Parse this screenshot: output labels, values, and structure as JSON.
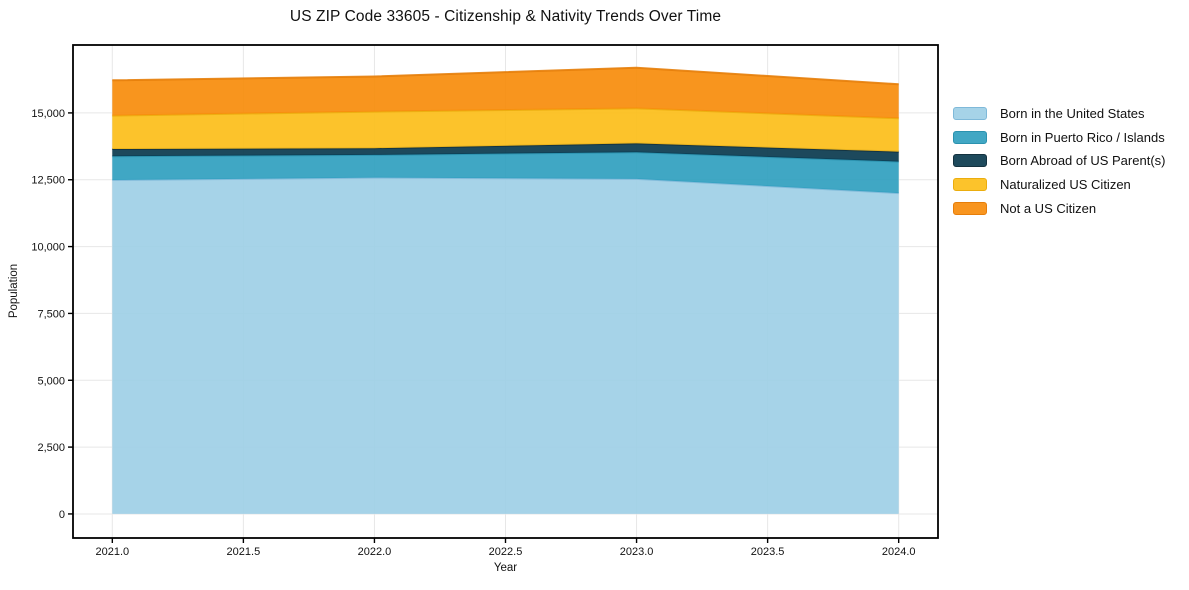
{
  "title": "US ZIP Code 33605 - Citizenship & Nativity Trends Over Time",
  "chart_data": {
    "type": "area",
    "stacked": true,
    "title": "US ZIP Code 33605 - Citizenship & Nativity Trends Over Time",
    "xlabel": "Year",
    "ylabel": "Population",
    "x": [
      2021,
      2022,
      2023,
      2024
    ],
    "series": [
      {
        "name": "Born in the United States",
        "values": [
          12490,
          12580,
          12530,
          12000
        ],
        "color": "#9ECFE6",
        "legend_color": "#A6D3E8",
        "edge_color": "#7FB9D9"
      },
      {
        "name": "Born in Puerto Rico / Islands",
        "values": [
          890,
          850,
          1000,
          1180
        ],
        "color": "#309FBF",
        "legend_color": "#41A7C4",
        "edge_color": "#2B92AF"
      },
      {
        "name": "Born Abroad of US Parent(s)",
        "values": [
          270,
          250,
          330,
          370
        ],
        "color": "#0A3A4E",
        "legend_color": "#1E4A5C",
        "edge_color": "#14323F"
      },
      {
        "name": "Naturalized US Citizen",
        "values": [
          1250,
          1370,
          1310,
          1250
        ],
        "color": "#FCBE19",
        "legend_color": "#FCC32B",
        "edge_color": "#EBAD0E"
      },
      {
        "name": "Not a US Citizen",
        "values": [
          1320,
          1310,
          1520,
          1270
        ],
        "color": "#F78C0B",
        "legend_color": "#F8951F",
        "edge_color": "#E67E0A"
      }
    ],
    "totals": [
      16220,
      16360,
      16690,
      16070
    ],
    "xlim": [
      2020.85,
      2024.15
    ],
    "ylim": [
      -900,
      17540
    ],
    "x_tick_values": [
      2021.0,
      2021.5,
      2022.0,
      2022.5,
      2023.0,
      2023.5,
      2024.0
    ],
    "x_tick_labels": [
      "2021.0",
      "2021.5",
      "2022.0",
      "2022.5",
      "2023.0",
      "2023.5",
      "2024.0"
    ],
    "y_tick_values": [
      0,
      2500,
      5000,
      7500,
      10000,
      12500,
      15000
    ],
    "y_tick_labels": [
      "0",
      "2,500",
      "5,000",
      "7,500",
      "10,000",
      "12,500",
      "15,000"
    ],
    "grid": true,
    "grid_color": "#E7E7E7",
    "legend_position": "right of plot, frameless",
    "fill_opacity": 0.92
  }
}
